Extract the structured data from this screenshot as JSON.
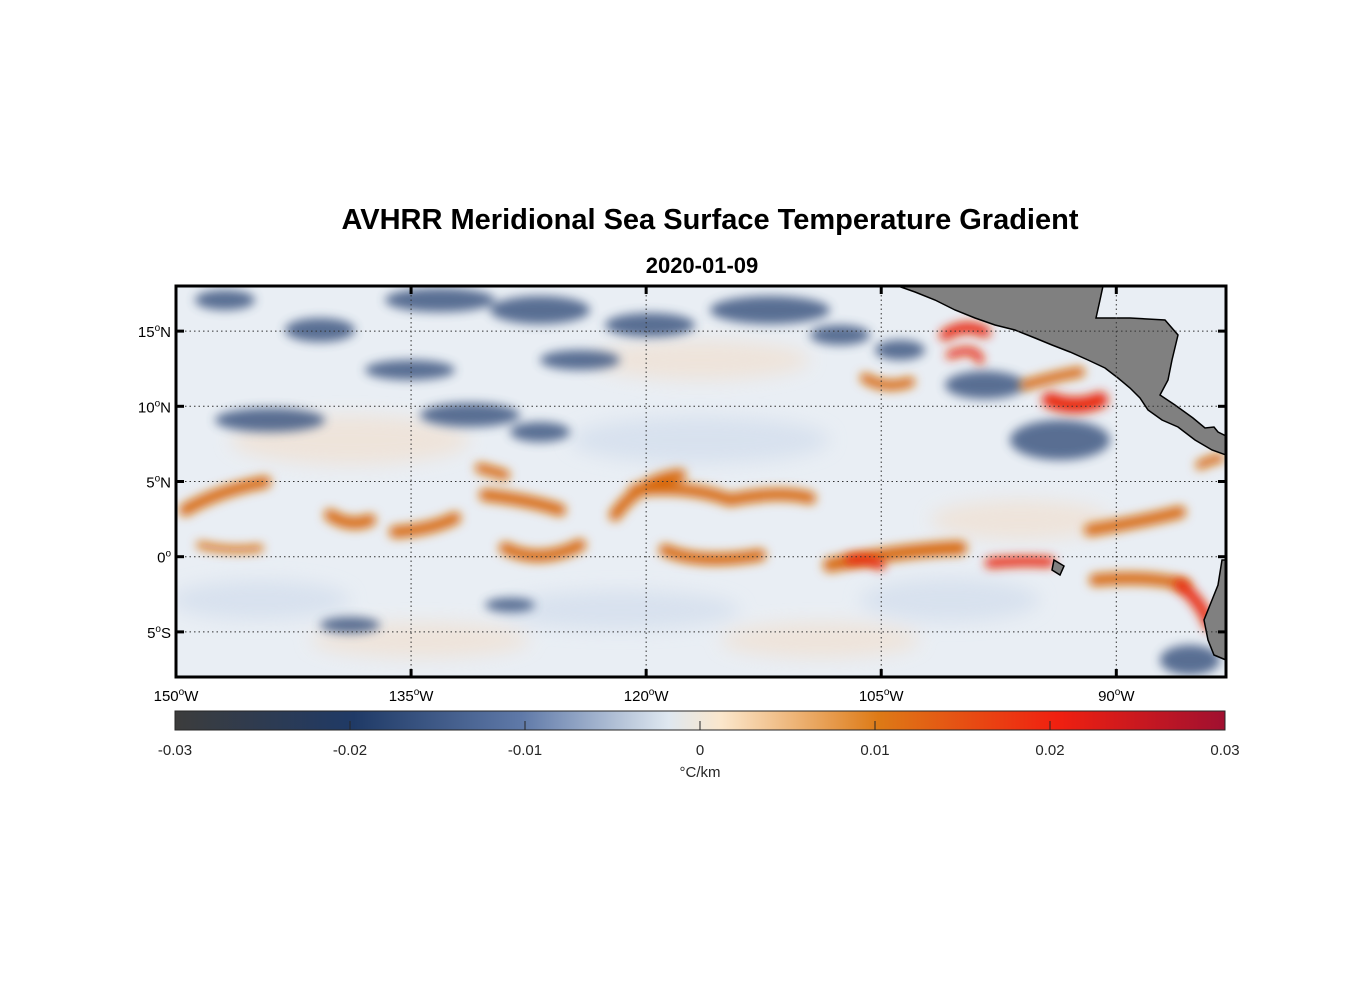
{
  "title": "AVHRR Meridional Sea Surface Temperature Gradient",
  "subtitle": "2020-01-09",
  "map": {
    "lon_range": [
      -150,
      -83
    ],
    "lat_range": [
      -8,
      18
    ],
    "lon_ticks": [
      {
        "value": -150,
        "deg": "150",
        "hemi": "W"
      },
      {
        "value": -135,
        "deg": "135",
        "hemi": "W"
      },
      {
        "value": -120,
        "deg": "120",
        "hemi": "W"
      },
      {
        "value": -105,
        "deg": "105",
        "hemi": "W"
      },
      {
        "value": -90,
        "deg": "90",
        "hemi": "W"
      }
    ],
    "lat_ticks": [
      {
        "value": 15,
        "deg": "15",
        "hemi": "N"
      },
      {
        "value": 10,
        "deg": "10",
        "hemi": "N"
      },
      {
        "value": 5,
        "deg": "5",
        "hemi": "N"
      },
      {
        "value": 0,
        "deg": "0",
        "hemi": ""
      },
      {
        "value": -5,
        "deg": "5",
        "hemi": "S"
      }
    ],
    "grid": "dotted",
    "land_color": "#808080"
  },
  "colorbar": {
    "range": [
      -0.03,
      0.03
    ],
    "tick_labels": [
      "-0.03",
      "-0.02",
      "-0.01",
      "0",
      "0.01",
      "0.02",
      "0.03"
    ],
    "units": "°C/km",
    "colors": [
      "#3c3c3c",
      "#1f3a66",
      "#5f79a8",
      "#dfe8f0",
      "#fbe7cc",
      "#dd7a16",
      "#f02010",
      "#a01030"
    ]
  }
}
